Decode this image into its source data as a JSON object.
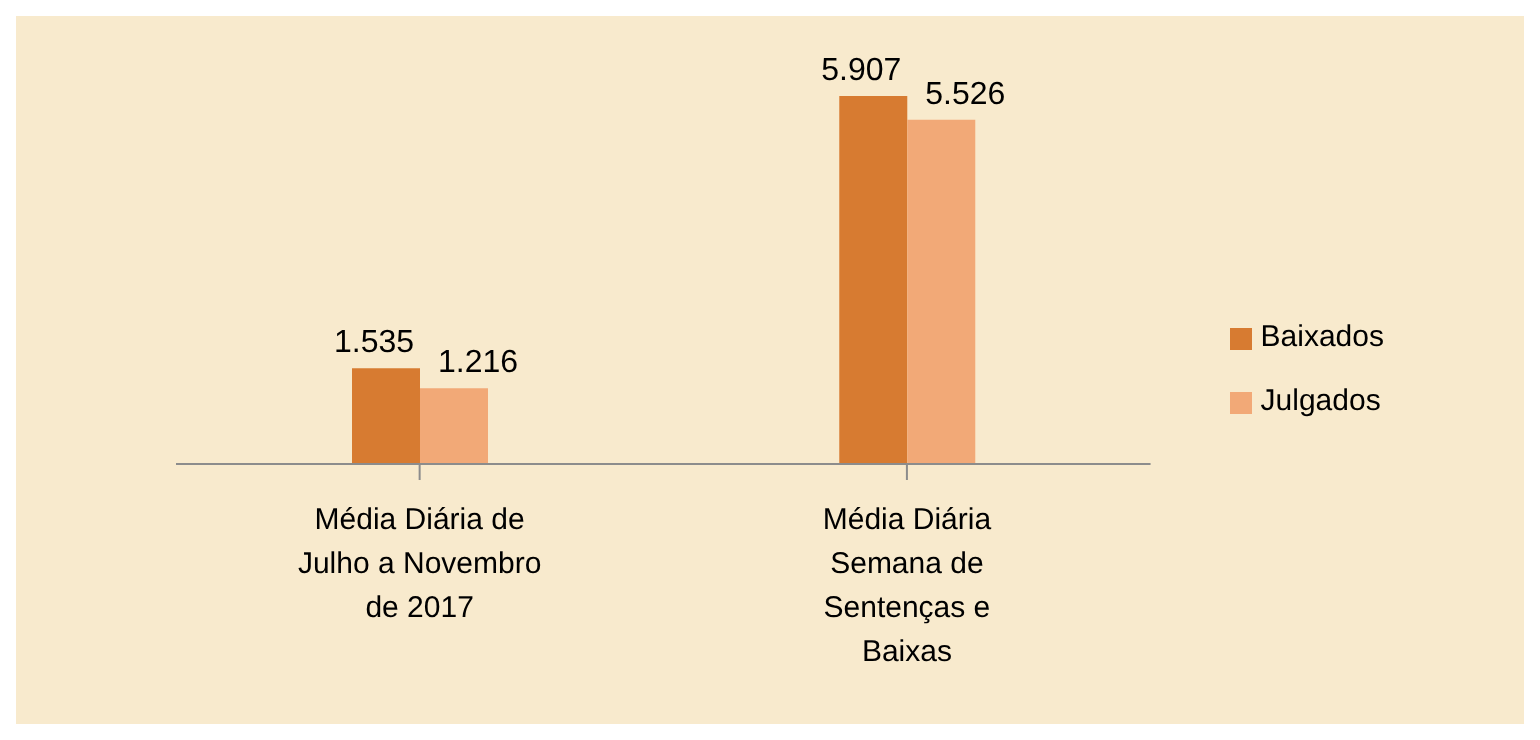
{
  "chart_data": {
    "type": "bar",
    "categories": [
      "Média Diária de Julho a Novembro de 2017",
      "Média Diária Semana de Sentenças e Baixas"
    ],
    "series": [
      {
        "name": "Baixados",
        "color": "#d77b31",
        "values": [
          1535,
          5907
        ],
        "value_labels": [
          "1.535",
          "5.907"
        ]
      },
      {
        "name": "Julgados",
        "color": "#f2a977",
        "values": [
          1216,
          5526
        ],
        "value_labels": [
          "1.216",
          "5.526"
        ]
      }
    ],
    "legend": "right"
  }
}
